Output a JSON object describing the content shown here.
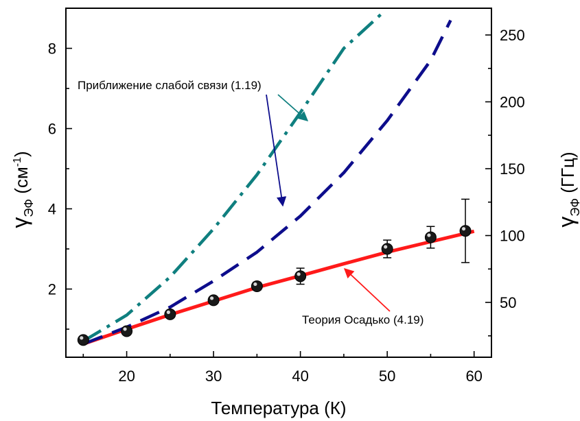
{
  "chart_data": {
    "type": "line",
    "xlabel": "Температура (К)",
    "ylabel": {
      "symbol": "γ",
      "sub": "ЭФ",
      "unit_pre": " (см",
      "unit_sup": "-1",
      "unit_post": ")"
    },
    "y2label": {
      "symbol": "γ",
      "sub": "ЭФ",
      "unit": " (ГГц)"
    },
    "xlim": [
      13,
      62
    ],
    "ylim": [
      0.3,
      9.0
    ],
    "y2lim": [
      9.0,
      270.0
    ],
    "xticks": [
      20,
      30,
      40,
      50,
      60
    ],
    "yticks": [
      2,
      4,
      6,
      8
    ],
    "y2ticks": [
      50,
      100,
      150,
      200,
      250
    ],
    "experiment": {
      "x": [
        15,
        20,
        25,
        30,
        35,
        40,
        50,
        55,
        59
      ],
      "y": [
        0.73,
        0.95,
        1.37,
        1.72,
        2.07,
        2.32,
        3.0,
        3.29,
        3.45
      ],
      "err": [
        0.05,
        0.05,
        0.06,
        0.06,
        0.1,
        0.2,
        0.22,
        0.27,
        0.79
      ],
      "color": "#1a1a1a"
    },
    "series": [
      {
        "style": "solid",
        "color": "#ff1a1a",
        "x": [
          15,
          20,
          25,
          30,
          35,
          40,
          45,
          50,
          55,
          60
        ],
        "y": [
          0.63,
          1.0,
          1.36,
          1.7,
          2.04,
          2.33,
          2.63,
          2.92,
          3.18,
          3.44
        ]
      },
      {
        "style": "dash",
        "color": "#0d0d8c",
        "x": [
          15,
          20,
          25,
          30,
          35,
          40,
          45,
          50,
          55,
          57.3
        ],
        "y": [
          0.63,
          1.05,
          1.55,
          2.2,
          2.92,
          3.82,
          4.9,
          6.2,
          7.7,
          8.7
        ]
      },
      {
        "style": "dashdot",
        "color": "#0f7f7f",
        "x": [
          15,
          20,
          25,
          30,
          35,
          40,
          45,
          49.8
        ],
        "y": [
          0.7,
          1.35,
          2.3,
          3.5,
          4.85,
          6.4,
          8.0,
          8.95
        ]
      }
    ],
    "annotations": [
      {
        "text": "Приближение слабой связи (1.19)"
      },
      {
        "text": "Теория Осадько (4.19)"
      }
    ]
  }
}
